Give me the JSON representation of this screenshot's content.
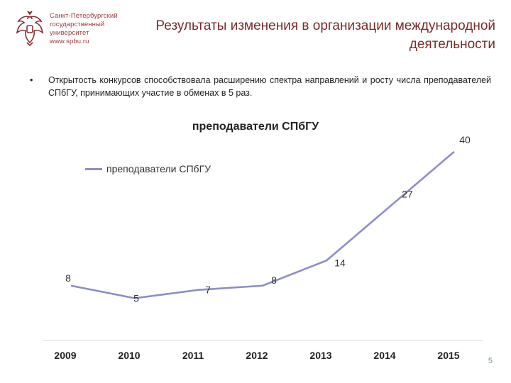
{
  "logo": {
    "lines": [
      "Санкт-Петербургский",
      "государственный",
      "университет",
      "www.spbu.ru"
    ],
    "icon": "double-headed-eagle-crest",
    "color": "#9a3b3b"
  },
  "slide": {
    "title": "Результаты изменения в организации международной деятельности",
    "page_number": "5"
  },
  "bullet": {
    "marker": "•",
    "text": "Открытость конкурсов способствовала расширению спектра направлений и росту числа преподавателей СПбГУ, принимающих участие в обменах в 5 раз."
  },
  "chart_data": {
    "type": "line",
    "title": "преподаватели СПбГУ",
    "categories": [
      "2009",
      "2010",
      "2011",
      "2012",
      "2013",
      "2014",
      "2015"
    ],
    "series": [
      {
        "name": "преподаватели СПбГУ",
        "values": [
          8,
          5,
          7,
          8,
          14,
          27,
          40
        ],
        "color": "#8c8dc9"
      }
    ],
    "ylim": [
      0,
      42
    ],
    "grid": false,
    "legend_position": "top-left",
    "data_labels": true
  }
}
